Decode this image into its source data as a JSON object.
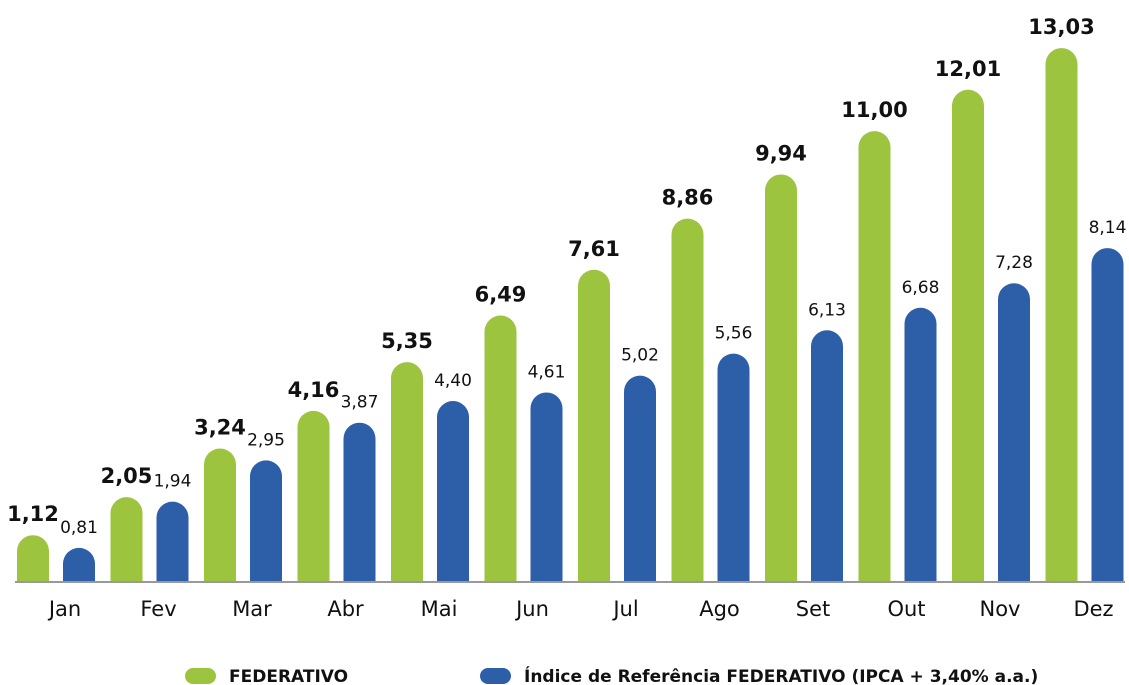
{
  "chart_data": {
    "type": "bar",
    "categories": [
      "Jan",
      "Fev",
      "Mar",
      "Abr",
      "Mai",
      "Jun",
      "Jul",
      "Ago",
      "Set",
      "Out",
      "Nov",
      "Dez"
    ],
    "series": [
      {
        "name": "FEDERATIVO",
        "color": "#9dc43f",
        "values": [
          1.12,
          2.05,
          3.24,
          4.16,
          5.35,
          6.49,
          7.61,
          8.86,
          9.94,
          11.0,
          12.01,
          13.03
        ],
        "value_labels": [
          "1,12",
          "2,05",
          "3,24",
          "4,16",
          "5,35",
          "6,49",
          "7,61",
          "8,86",
          "9,94",
          "11,00",
          "12,01",
          "13,03"
        ]
      },
      {
        "name": "Índice de Referência FEDERATIVO (IPCA + 3,40% a.a.)",
        "color": "#2d5ea8",
        "values": [
          0.81,
          1.94,
          2.95,
          3.87,
          4.4,
          4.61,
          5.02,
          5.56,
          6.13,
          6.68,
          7.28,
          8.14
        ],
        "value_labels": [
          "0,81",
          "1,94",
          "2,95",
          "3,87",
          "4,40",
          "4,61",
          "5,02",
          "5,56",
          "6,13",
          "6,68",
          "7,28",
          "8,14"
        ]
      }
    ],
    "legend": "bottom"
  }
}
